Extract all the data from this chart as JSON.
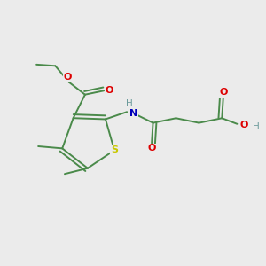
{
  "background_color": "#ebebeb",
  "bond_color": "#4a8a4a",
  "atom_colors": {
    "S": "#c8c800",
    "N": "#0000bb",
    "O": "#dd0000",
    "H": "#6a9a9a",
    "C": "#4a8a4a"
  },
  "figsize": [
    3.0,
    3.0
  ],
  "dpi": 100,
  "xlim": [
    0,
    10
  ],
  "ylim": [
    0,
    10
  ]
}
